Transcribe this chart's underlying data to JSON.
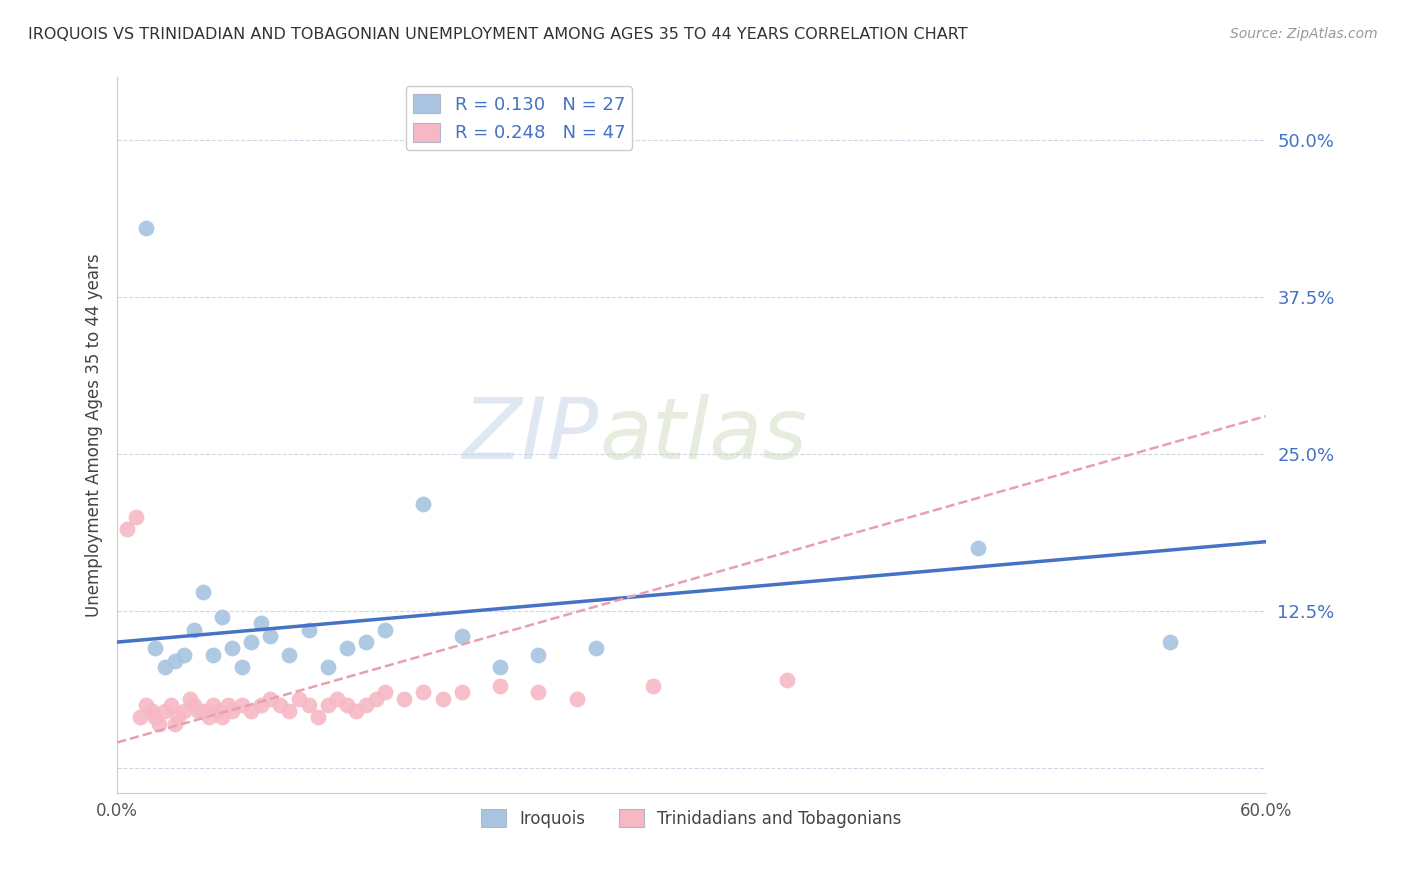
{
  "title": "IROQUOIS VS TRINIDADIAN AND TOBAGONIAN UNEMPLOYMENT AMONG AGES 35 TO 44 YEARS CORRELATION CHART",
  "source": "Source: ZipAtlas.com",
  "ylabel": "Unemployment Among Ages 35 to 44 years",
  "xlim": [
    0.0,
    60.0
  ],
  "ylim": [
    -2.0,
    55.0
  ],
  "yticks": [
    0.0,
    12.5,
    25.0,
    37.5,
    50.0
  ],
  "ytick_labels": [
    "",
    "12.5%",
    "25.0%",
    "37.5%",
    "50.0%"
  ],
  "iroquois_color": "#a8c4e0",
  "trinidadian_color": "#f5b8c4",
  "iroquois_line_color": "#4472c4",
  "trinidadian_line_color": "#e8a0b0",
  "bg_color": "#ffffff",
  "grid_color": "#d0d8e8",
  "watermark_zip": "ZIP",
  "watermark_atlas": "atlas",
  "iroquois_x": [
    1.5,
    2.0,
    2.5,
    3.0,
    3.5,
    4.0,
    4.5,
    5.0,
    5.5,
    6.0,
    6.5,
    7.0,
    7.5,
    8.0,
    9.0,
    10.0,
    11.0,
    12.0,
    13.0,
    14.0,
    16.0,
    18.0,
    20.0,
    22.0,
    25.0,
    45.0,
    55.0
  ],
  "iroquois_y": [
    43.0,
    9.5,
    8.0,
    8.5,
    9.0,
    11.0,
    14.0,
    9.0,
    12.0,
    9.5,
    8.0,
    10.0,
    11.5,
    10.5,
    9.0,
    11.0,
    8.0,
    9.5,
    10.0,
    11.0,
    21.0,
    10.5,
    8.0,
    9.0,
    9.5,
    17.5,
    10.0
  ],
  "trinidadian_x": [
    0.5,
    1.0,
    1.2,
    1.5,
    1.8,
    2.0,
    2.2,
    2.5,
    2.8,
    3.0,
    3.2,
    3.5,
    3.8,
    4.0,
    4.2,
    4.5,
    4.8,
    5.0,
    5.2,
    5.5,
    5.8,
    6.0,
    6.5,
    7.0,
    7.5,
    8.0,
    8.5,
    9.0,
    9.5,
    10.0,
    10.5,
    11.0,
    11.5,
    12.0,
    12.5,
    13.0,
    13.5,
    14.0,
    15.0,
    16.0,
    17.0,
    18.0,
    20.0,
    22.0,
    24.0,
    28.0,
    35.0
  ],
  "trinidadian_y": [
    19.0,
    20.0,
    4.0,
    5.0,
    4.5,
    4.0,
    3.5,
    4.5,
    5.0,
    3.5,
    4.0,
    4.5,
    5.5,
    5.0,
    4.5,
    4.5,
    4.0,
    5.0,
    4.5,
    4.0,
    5.0,
    4.5,
    5.0,
    4.5,
    5.0,
    5.5,
    5.0,
    4.5,
    5.5,
    5.0,
    4.0,
    5.0,
    5.5,
    5.0,
    4.5,
    5.0,
    5.5,
    6.0,
    5.5,
    6.0,
    5.5,
    6.0,
    6.5,
    6.0,
    5.5,
    6.5,
    7.0
  ],
  "legend_r1": "R = 0.130   N = 27",
  "legend_r2": "R = 0.248   N = 47"
}
